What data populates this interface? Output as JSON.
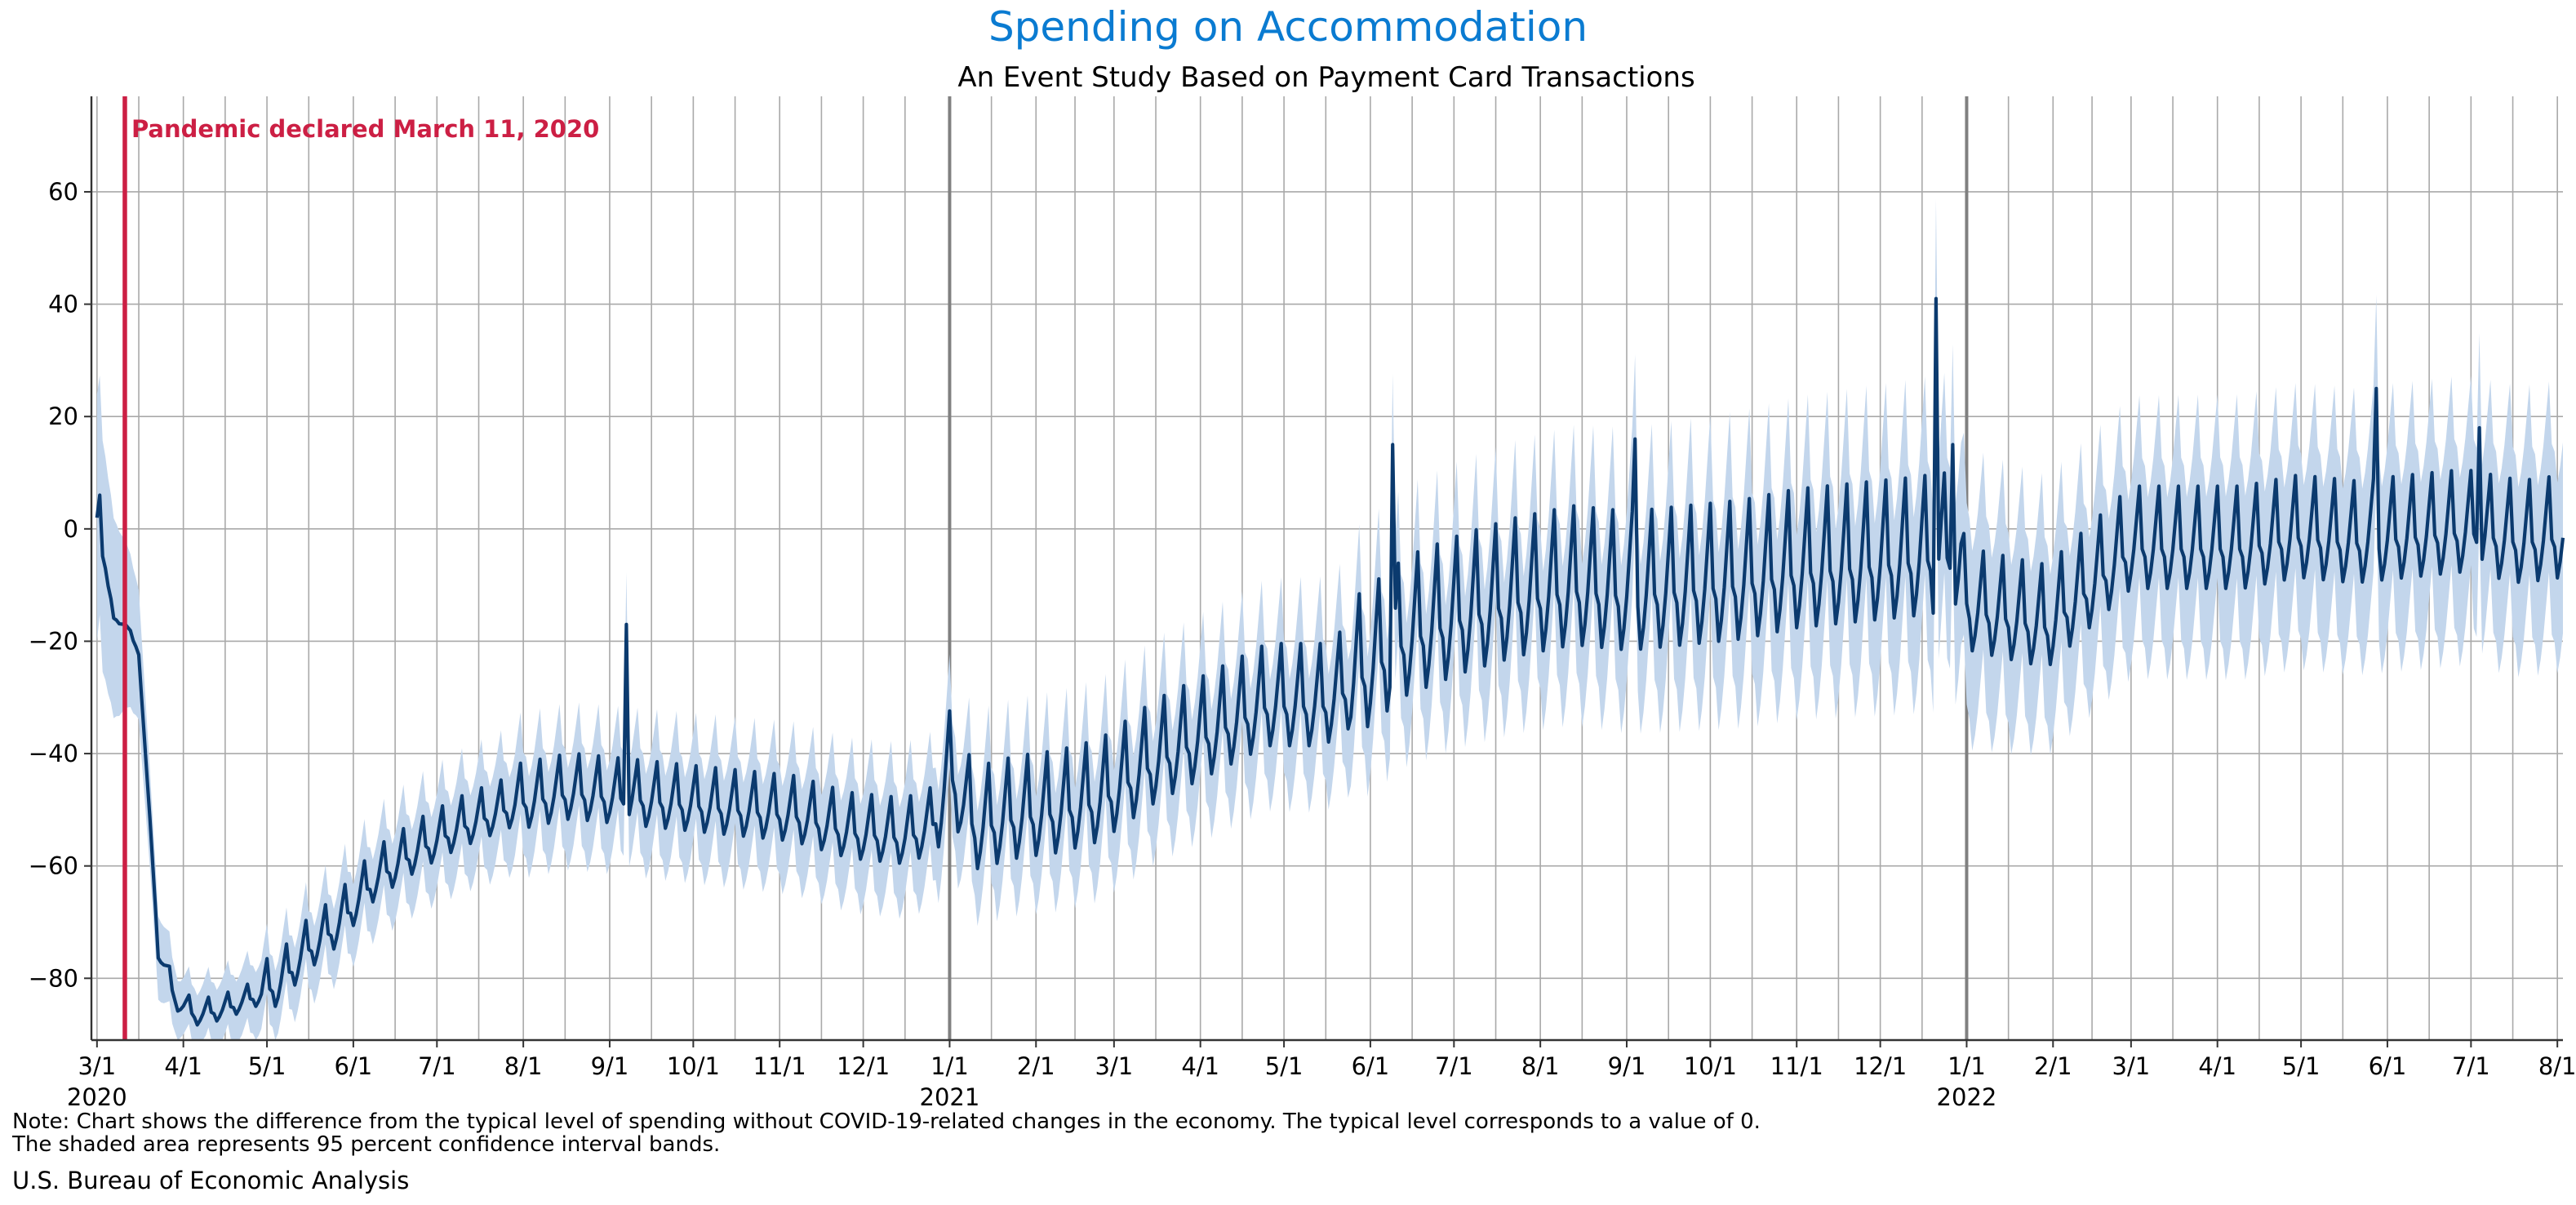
{
  "colors": {
    "title": "#0a7bd1",
    "line": "#0b3a6e",
    "band": "#c3d6ec",
    "grid": "#a9a9a9",
    "year_line": "#808080",
    "event": "#cc1f44",
    "axis": "#333333"
  },
  "chart_data": {
    "type": "line",
    "title": "Spending on Accommodation",
    "subtitle": "An Event Study Based on Payment Card Transactions",
    "xlabel": "",
    "ylabel": "",
    "x_range_days_from_2020_03_01": [
      -2,
      885
    ],
    "ylim": [
      -91,
      77
    ],
    "y_ticks": [
      -80,
      -60,
      -40,
      -20,
      0,
      20,
      40,
      60
    ],
    "y_tick_labels": [
      "−80",
      "−60",
      "−40",
      "−20",
      "0",
      "20",
      "40",
      "60"
    ],
    "x_ticks": [
      {
        "day": 0,
        "label": "3/1",
        "year": "2020"
      },
      {
        "day": 31,
        "label": "4/1",
        "year": ""
      },
      {
        "day": 61,
        "label": "5/1",
        "year": ""
      },
      {
        "day": 92,
        "label": "6/1",
        "year": ""
      },
      {
        "day": 122,
        "label": "7/1",
        "year": ""
      },
      {
        "day": 153,
        "label": "8/1",
        "year": ""
      },
      {
        "day": 184,
        "label": "9/1",
        "year": ""
      },
      {
        "day": 214,
        "label": "10/1",
        "year": ""
      },
      {
        "day": 245,
        "label": "11/1",
        "year": ""
      },
      {
        "day": 275,
        "label": "12/1",
        "year": ""
      },
      {
        "day": 306,
        "label": "1/1",
        "year": "2021"
      },
      {
        "day": 337,
        "label": "2/1",
        "year": ""
      },
      {
        "day": 365,
        "label": "3/1",
        "year": ""
      },
      {
        "day": 396,
        "label": "4/1",
        "year": ""
      },
      {
        "day": 426,
        "label": "5/1",
        "year": ""
      },
      {
        "day": 457,
        "label": "6/1",
        "year": ""
      },
      {
        "day": 487,
        "label": "7/1",
        "year": ""
      },
      {
        "day": 518,
        "label": "8/1",
        "year": ""
      },
      {
        "day": 549,
        "label": "9/1",
        "year": ""
      },
      {
        "day": 579,
        "label": "10/1",
        "year": ""
      },
      {
        "day": 610,
        "label": "11/1",
        "year": ""
      },
      {
        "day": 640,
        "label": "12/1",
        "year": ""
      },
      {
        "day": 671,
        "label": "1/1",
        "year": "2022"
      },
      {
        "day": 702,
        "label": "2/1",
        "year": ""
      },
      {
        "day": 730,
        "label": "3/1",
        "year": ""
      },
      {
        "day": 761,
        "label": "4/1",
        "year": ""
      },
      {
        "day": 791,
        "label": "5/1",
        "year": ""
      },
      {
        "day": 822,
        "label": "6/1",
        "year": ""
      },
      {
        "day": 852,
        "label": "7/1",
        "year": ""
      },
      {
        "day": 883,
        "label": "8/1",
        "year": ""
      }
    ],
    "minor_gridlines_days": [
      15,
      46,
      76,
      107,
      137,
      168,
      199,
      229,
      260,
      290,
      321,
      351,
      380,
      411,
      441,
      472,
      502,
      533,
      564,
      594,
      625,
      655,
      686,
      716,
      745,
      776,
      806,
      837,
      867
    ],
    "year_boundaries_days": [
      306,
      671
    ],
    "series": [
      {
        "name": "Spending difference from typical level (%)",
        "kind": "line",
        "weekly_pattern": [
          0,
          -4,
          -2,
          1,
          5,
          9,
          1
        ],
        "anchors": [
          [
            0,
            2
          ],
          [
            3,
            -8
          ],
          [
            6,
            -16
          ],
          [
            10,
            -17
          ],
          [
            15,
            -22
          ],
          [
            18,
            -45
          ],
          [
            22,
            -75
          ],
          [
            28,
            -84
          ],
          [
            35,
            -87
          ],
          [
            45,
            -86
          ],
          [
            55,
            -84
          ],
          [
            65,
            -82
          ],
          [
            75,
            -76
          ],
          [
            85,
            -72
          ],
          [
            100,
            -63
          ],
          [
            115,
            -58
          ],
          [
            130,
            -54
          ],
          [
            150,
            -50
          ],
          [
            170,
            -48
          ],
          [
            190,
            -49
          ],
          [
            210,
            -50
          ],
          [
            230,
            -51
          ],
          [
            250,
            -52
          ],
          [
            270,
            -55
          ],
          [
            290,
            -56
          ],
          [
            300,
            -54
          ],
          [
            306,
            -45
          ],
          [
            315,
            -55
          ],
          [
            330,
            -53
          ],
          [
            345,
            -52
          ],
          [
            360,
            -50
          ],
          [
            380,
            -43
          ],
          [
            400,
            -38
          ],
          [
            420,
            -33
          ],
          [
            440,
            -33
          ],
          [
            455,
            -28
          ],
          [
            470,
            -22
          ],
          [
            490,
            -18
          ],
          [
            510,
            -15
          ],
          [
            530,
            -13
          ],
          [
            550,
            -14
          ],
          [
            570,
            -13
          ],
          [
            590,
            -12
          ],
          [
            610,
            -10
          ],
          [
            630,
            -9
          ],
          [
            650,
            -8
          ],
          [
            665,
            -7
          ],
          [
            672,
            -16
          ],
          [
            690,
            -18
          ],
          [
            700,
            -19
          ],
          [
            715,
            -12
          ],
          [
            730,
            -5
          ],
          [
            750,
            -5
          ],
          [
            770,
            -5
          ],
          [
            790,
            -3
          ],
          [
            810,
            -4
          ],
          [
            830,
            -3
          ],
          [
            850,
            -2
          ],
          [
            870,
            -4
          ],
          [
            885,
            -3
          ]
        ],
        "spikes": [
          [
            1,
            6
          ],
          [
            3,
            -7
          ],
          [
            190,
            -17
          ],
          [
            465,
            15
          ],
          [
            552,
            16
          ],
          [
            660,
            41
          ],
          [
            666,
            15
          ],
          [
            818,
            25
          ],
          [
            855,
            18
          ]
        ],
        "ci_half_width": [
          [
            0,
            22
          ],
          [
            20,
            8
          ],
          [
            30,
            5
          ],
          [
            80,
            7
          ],
          [
            150,
            9
          ],
          [
            300,
            10
          ],
          [
            440,
            12
          ],
          [
            550,
            15
          ],
          [
            670,
            18
          ],
          [
            700,
            16
          ],
          [
            885,
            17
          ]
        ]
      },
      {
        "name": "95 percent confidence interval",
        "kind": "band"
      }
    ],
    "annotations": [
      {
        "type": "vline",
        "day": 10,
        "text": "Pandemic declared March 11, 2020"
      }
    ]
  },
  "footnote": {
    "line1": "Note: Chart shows the difference from the typical level of spending without COVID-19-related changes in the economy. The typical level corresponds to a value of 0.",
    "line2": "The shaded area represents 95 percent confidence interval bands."
  },
  "source": "U.S. Bureau of Economic Analysis"
}
